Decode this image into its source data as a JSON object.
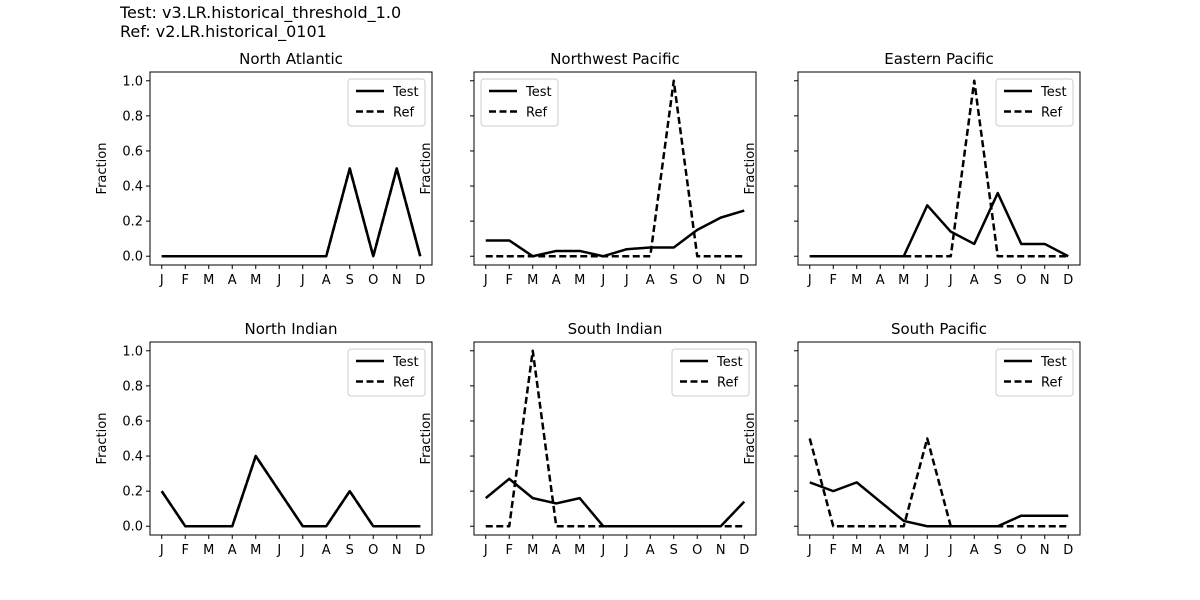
{
  "header": {
    "test_line": "Test: v3.LR.historical_threshold_1.0",
    "ref_line": "Ref: v2.LR.historical_0101"
  },
  "colors": {
    "line": "#000000",
    "background": "#ffffff",
    "legend_border": "#cccccc"
  },
  "chart_data": [
    {
      "type": "line",
      "title": "North Atlantic",
      "xlabel": "",
      "ylabel": "Fraction",
      "categories": [
        "J",
        "F",
        "M",
        "A",
        "M",
        "J",
        "J",
        "A",
        "S",
        "O",
        "N",
        "D"
      ],
      "ylim": [
        -0.05,
        1.05
      ],
      "yticks": [
        0.0,
        0.2,
        0.4,
        0.6,
        0.8,
        1.0
      ],
      "ytick_labels": [
        "0.0",
        "0.2",
        "0.4",
        "0.6",
        "0.8",
        "1.0"
      ],
      "legend_position": "upper right",
      "series": [
        {
          "name": "Test",
          "style": "solid",
          "values": [
            0,
            0,
            0,
            0,
            0,
            0,
            0,
            0,
            0.5,
            0,
            0.5,
            0
          ]
        },
        {
          "name": "Ref",
          "style": "dashed",
          "values": [
            0,
            0,
            0,
            0,
            0,
            0,
            0,
            0,
            0.5,
            0,
            0.5,
            0
          ]
        }
      ]
    },
    {
      "type": "line",
      "title": "Northwest Pacific",
      "xlabel": "",
      "ylabel": "Fraction",
      "categories": [
        "J",
        "F",
        "M",
        "A",
        "M",
        "J",
        "J",
        "A",
        "S",
        "O",
        "N",
        "D"
      ],
      "ylim": [
        -0.05,
        1.05
      ],
      "yticks": [
        0.0,
        0.2,
        0.4,
        0.6,
        0.8,
        1.0
      ],
      "ytick_labels": [],
      "legend_position": "upper left",
      "series": [
        {
          "name": "Test",
          "style": "solid",
          "values": [
            0.09,
            0.09,
            0,
            0.03,
            0.03,
            0,
            0.04,
            0.05,
            0.05,
            0.15,
            0.22,
            0.26
          ]
        },
        {
          "name": "Ref",
          "style": "dashed",
          "values": [
            0,
            0,
            0,
            0,
            0,
            0,
            0,
            0,
            1.0,
            0,
            0,
            0
          ]
        }
      ]
    },
    {
      "type": "line",
      "title": "Eastern Pacific",
      "xlabel": "",
      "ylabel": "Fraction",
      "categories": [
        "J",
        "F",
        "M",
        "A",
        "M",
        "J",
        "J",
        "A",
        "S",
        "O",
        "N",
        "D"
      ],
      "ylim": [
        -0.05,
        1.05
      ],
      "yticks": [
        0.0,
        0.2,
        0.4,
        0.6,
        0.8,
        1.0
      ],
      "ytick_labels": [],
      "legend_position": "upper right",
      "series": [
        {
          "name": "Test",
          "style": "solid",
          "values": [
            0,
            0,
            0,
            0,
            0,
            0.29,
            0.14,
            0.07,
            0.36,
            0.07,
            0.07,
            0
          ]
        },
        {
          "name": "Ref",
          "style": "dashed",
          "values": [
            0,
            0,
            0,
            0,
            0,
            0,
            0,
            1.0,
            0,
            0,
            0,
            0
          ]
        }
      ]
    },
    {
      "type": "line",
      "title": "North Indian",
      "xlabel": "",
      "ylabel": "Fraction",
      "categories": [
        "J",
        "F",
        "M",
        "A",
        "M",
        "J",
        "J",
        "A",
        "S",
        "O",
        "N",
        "D"
      ],
      "ylim": [
        -0.05,
        1.05
      ],
      "yticks": [
        0.0,
        0.2,
        0.4,
        0.6,
        0.8,
        1.0
      ],
      "ytick_labels": [
        "0.0",
        "0.2",
        "0.4",
        "0.6",
        "0.8",
        "1.0"
      ],
      "legend_position": "upper right",
      "series": [
        {
          "name": "Test",
          "style": "solid",
          "values": [
            0.2,
            0,
            0,
            0,
            0.4,
            0.2,
            0,
            0,
            0.2,
            0,
            0,
            0
          ]
        },
        {
          "name": "Ref",
          "style": "dashed",
          "values": [
            0.2,
            0,
            0,
            0,
            0.4,
            0.2,
            0,
            0,
            0.2,
            0,
            0,
            0
          ]
        }
      ]
    },
    {
      "type": "line",
      "title": "South Indian",
      "xlabel": "",
      "ylabel": "Fraction",
      "categories": [
        "J",
        "F",
        "M",
        "A",
        "M",
        "J",
        "J",
        "A",
        "S",
        "O",
        "N",
        "D"
      ],
      "ylim": [
        -0.05,
        1.05
      ],
      "yticks": [
        0.0,
        0.2,
        0.4,
        0.6,
        0.8,
        1.0
      ],
      "ytick_labels": [],
      "legend_position": "upper right",
      "series": [
        {
          "name": "Test",
          "style": "solid",
          "values": [
            0.16,
            0.27,
            0.16,
            0.13,
            0.16,
            0,
            0,
            0,
            0,
            0,
            0,
            0.14
          ]
        },
        {
          "name": "Ref",
          "style": "dashed",
          "values": [
            0,
            0,
            1.0,
            0,
            0,
            0,
            0,
            0,
            0,
            0,
            0,
            0
          ]
        }
      ]
    },
    {
      "type": "line",
      "title": "South Pacific",
      "xlabel": "",
      "ylabel": "Fraction",
      "categories": [
        "J",
        "F",
        "M",
        "A",
        "M",
        "J",
        "J",
        "A",
        "S",
        "O",
        "N",
        "D"
      ],
      "ylim": [
        -0.05,
        1.05
      ],
      "yticks": [
        0.0,
        0.2,
        0.4,
        0.6,
        0.8,
        1.0
      ],
      "ytick_labels": [],
      "legend_position": "upper right",
      "series": [
        {
          "name": "Test",
          "style": "solid",
          "values": [
            0.25,
            0.2,
            0.25,
            0.14,
            0.03,
            0,
            0,
            0,
            0,
            0.06,
            0.06,
            0.06
          ]
        },
        {
          "name": "Ref",
          "style": "dashed",
          "values": [
            0.5,
            0,
            0,
            0,
            0,
            0.5,
            0,
            0,
            0,
            0,
            0,
            0
          ]
        }
      ]
    }
  ]
}
